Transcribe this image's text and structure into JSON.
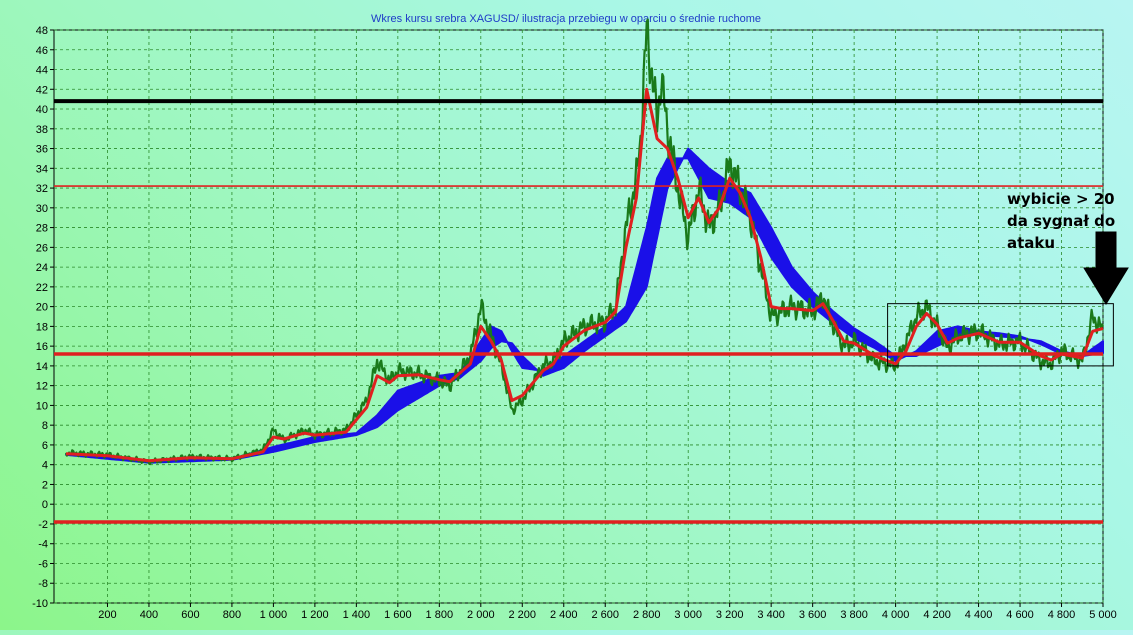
{
  "chart_data": {
    "type": "line",
    "title": "Wkres kursu srebra XAGUSD/ ilustracja przebiegu w oparciu o średnie ruchome",
    "xlabel": "",
    "ylabel": "",
    "xlim": [
      0,
      5000
    ],
    "ylim": [
      -10,
      48
    ],
    "grid": true,
    "x_ticks": [
      200,
      400,
      600,
      800,
      1000,
      1200,
      1400,
      1600,
      1800,
      2000,
      2200,
      2400,
      2600,
      2800,
      3000,
      3200,
      3400,
      3600,
      3800,
      4000,
      4200,
      4400,
      4600,
      4800,
      5000
    ],
    "x_tick_labels": [
      "200",
      "400",
      "600",
      "800",
      "1 000",
      "1 200",
      "1 400",
      "1 600",
      "1 800",
      "2 000",
      "2 200",
      "2 400",
      "2 600",
      "2 800",
      "3 000",
      "3 200",
      "3 400",
      "3 600",
      "3 800",
      "4 000",
      "4 200",
      "4 400",
      "4 600",
      "4 800",
      "5 000"
    ],
    "y_ticks": [
      -10,
      -8,
      -6,
      -4,
      -2,
      0,
      2,
      4,
      6,
      8,
      10,
      12,
      14,
      16,
      18,
      20,
      22,
      24,
      26,
      28,
      30,
      32,
      34,
      36,
      38,
      40,
      42,
      44,
      46,
      48
    ],
    "series": [
      {
        "color": "#1a7a1a",
        "x": [
          0,
          200,
          400,
          600,
          800,
          950,
          1000,
          1050,
          1150,
          1200,
          1350,
          1450,
          1500,
          1560,
          1600,
          1700,
          1800,
          1850,
          1950,
          2000,
          2050,
          2100,
          2150,
          2200,
          2300,
          2350,
          2400,
          2500,
          2600,
          2650,
          2700,
          2750,
          2770,
          2800,
          2850,
          2870,
          2900,
          2950,
          3000,
          3050,
          3100,
          3150,
          3200,
          3250,
          3300,
          3350,
          3400,
          3450,
          3500,
          3600,
          3650,
          3700,
          3750,
          3800,
          3900,
          4000,
          4050,
          4100,
          4150,
          4200,
          4250,
          4300,
          4400,
          4500,
          4600,
          4700,
          4750,
          4800,
          4850,
          4900,
          4950,
          5000
        ],
        "y": [
          5.2,
          5,
          4.3,
          4.8,
          4.6,
          5.5,
          7.5,
          6.5,
          7.5,
          7,
          7.5,
          10.5,
          14.5,
          12.5,
          13.5,
          13.2,
          12.5,
          12,
          15,
          20,
          17,
          14,
          9.5,
          10.5,
          14,
          14.5,
          16.5,
          18,
          18.5,
          20,
          28,
          33,
          37,
          48,
          39,
          43,
          38,
          32,
          27,
          32,
          28,
          30,
          34.5,
          32,
          29,
          24,
          19,
          19.5,
          20,
          19.5,
          21,
          18,
          16,
          16.5,
          14.5,
          14,
          16.5,
          19,
          20,
          18,
          15.8,
          17,
          17.5,
          16.2,
          16.5,
          14.5,
          14.2,
          15.5,
          15,
          14.5,
          19,
          17.5
        ]
      },
      {
        "color": "#e02020",
        "x": [
          0,
          200,
          400,
          600,
          800,
          950,
          1000,
          1050,
          1150,
          1200,
          1350,
          1450,
          1500,
          1560,
          1600,
          1700,
          1800,
          1850,
          1950,
          2000,
          2050,
          2100,
          2150,
          2200,
          2300,
          2350,
          2400,
          2500,
          2600,
          2650,
          2700,
          2750,
          2800,
          2850,
          2900,
          2950,
          3000,
          3050,
          3100,
          3150,
          3200,
          3250,
          3300,
          3350,
          3400,
          3450,
          3500,
          3600,
          3650,
          3700,
          3750,
          3800,
          3900,
          4000,
          4050,
          4100,
          4150,
          4200,
          4250,
          4300,
          4400,
          4500,
          4600,
          4700,
          4750,
          4800,
          4850,
          4900,
          4950,
          5000
        ],
        "y": [
          5.1,
          4.9,
          4.4,
          4.7,
          4.6,
          5.3,
          6.8,
          6.6,
          7.2,
          7,
          7.3,
          9.8,
          13,
          12.3,
          13,
          13.1,
          12.6,
          12.4,
          14.2,
          18,
          16.5,
          14.5,
          10.5,
          11,
          13.5,
          14.2,
          16,
          17.6,
          18.4,
          19.5,
          26,
          31,
          42,
          37,
          36,
          33,
          29,
          31,
          28.5,
          30,
          33,
          31.5,
          29,
          25,
          20,
          19.8,
          19.8,
          19.6,
          20.3,
          18.5,
          16.5,
          16.3,
          15,
          14.2,
          15.5,
          18,
          19.3,
          18.2,
          16.3,
          16.8,
          17.3,
          16.4,
          16.4,
          15,
          14.6,
          15.2,
          15,
          14.8,
          17.5,
          17.8
        ]
      },
      {
        "color": "#1a10e8",
        "x": [
          0,
          400,
          800,
          1000,
          1200,
          1400,
          1500,
          1600,
          1800,
          1900,
          2000,
          2050,
          2100,
          2150,
          2200,
          2300,
          2400,
          2500,
          2600,
          2700,
          2800,
          2850,
          2900,
          3000,
          3100,
          3200,
          3300,
          3400,
          3500,
          3600,
          3700,
          3800,
          3900,
          4000,
          4100,
          4200,
          4300,
          4400,
          4500,
          4600,
          4700,
          4800,
          4900,
          5000
        ],
        "y": [
          5,
          4.4,
          4.6,
          5.8,
          6.8,
          7.2,
          9,
          11.5,
          13,
          13.3,
          16.5,
          18,
          17.5,
          15.5,
          13.8,
          13.5,
          15,
          16.5,
          18,
          20,
          28,
          33,
          35,
          35,
          31,
          30.5,
          29,
          25,
          22,
          20,
          18.3,
          16.8,
          15.8,
          14.5,
          15.5,
          17.5,
          18,
          17.5,
          17.3,
          17,
          16.2,
          15.2,
          15,
          16.5
        ]
      },
      {
        "color": "#1a10e8",
        "x": [
          0,
          400,
          800,
          1000,
          1200,
          1400,
          1500,
          1600,
          1800,
          1900,
          2000,
          2050,
          2100,
          2150,
          2200,
          2300,
          2400,
          2500,
          2600,
          2700,
          2800,
          2850,
          2900,
          3000,
          3100,
          3200,
          3300,
          3400,
          3500,
          3600,
          3700,
          3800,
          3900,
          4000,
          4100,
          4200,
          4300,
          4400,
          4500,
          4600,
          4700,
          4800,
          4900,
          5000
        ],
        "y": [
          5,
          4.2,
          4.5,
          5.3,
          6.3,
          7,
          7.8,
          9.5,
          12,
          12.8,
          14.5,
          15.8,
          16.5,
          16.3,
          15,
          13,
          13.8,
          15.5,
          17,
          18.5,
          22,
          27,
          32,
          36,
          34,
          32.5,
          31.5,
          28,
          24,
          21.5,
          19.5,
          17.8,
          16.5,
          15,
          15,
          16,
          17,
          17.2,
          17,
          16.8,
          16.5,
          15.5,
          15,
          15.3
        ]
      }
    ],
    "reference_lines": [
      {
        "y": 40.8,
        "color": "#000000"
      },
      {
        "y": 32.2,
        "color": "#e02020"
      },
      {
        "y": 15.2,
        "color": "#e02020"
      },
      {
        "y": -1.8,
        "color": "#e02020"
      }
    ],
    "annotations": {
      "text_lines": [
        "wybicie > 20",
        "da sygnał do",
        "ataku"
      ],
      "box": {
        "x": [
          4000,
          5050
        ],
        "y": [
          14,
          20.3
        ]
      }
    }
  }
}
